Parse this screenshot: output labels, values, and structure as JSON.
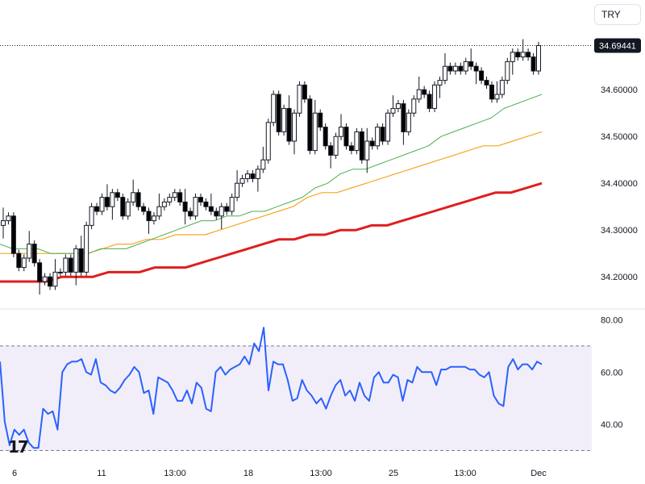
{
  "currency_selector": {
    "label": "TRY"
  },
  "chart_data": [
    {
      "type": "candlestick",
      "ylim": [
        34.14,
        34.74
      ],
      "y_ticks": [
        "34.20000",
        "34.30000",
        "34.40000",
        "34.50000",
        "34.60000"
      ],
      "last_price": {
        "label": "34.69441",
        "value": 34.69441
      },
      "x_ticks": [
        "6",
        "11",
        "13:00",
        "18",
        "13:00",
        "25",
        "13:00",
        "Dec"
      ],
      "candles_close": [
        34.32,
        34.33,
        34.25,
        34.22,
        34.24,
        34.27,
        34.23,
        34.19,
        34.2,
        34.18,
        34.21,
        34.21,
        34.24,
        34.21,
        34.26,
        34.21,
        34.31,
        34.35,
        34.34,
        34.37,
        34.35,
        34.38,
        34.37,
        34.33,
        34.36,
        34.38,
        34.35,
        34.34,
        34.32,
        34.33,
        34.35,
        34.36,
        34.37,
        34.38,
        34.36,
        34.34,
        34.33,
        34.37,
        34.36,
        34.35,
        34.34,
        34.33,
        34.35,
        34.34,
        34.37,
        34.4,
        34.41,
        34.42,
        34.41,
        34.43,
        34.45,
        34.53,
        34.59,
        34.51,
        34.56,
        34.49,
        34.55,
        34.61,
        34.58,
        34.47,
        34.55,
        34.52,
        34.48,
        34.46,
        34.5,
        34.52,
        34.48,
        34.47,
        34.51,
        34.45,
        34.49,
        34.48,
        34.52,
        34.49,
        34.55,
        34.56,
        34.57,
        34.51,
        34.55,
        34.58,
        34.6,
        34.59,
        34.56,
        34.61,
        34.62,
        34.65,
        34.64,
        34.65,
        34.64,
        34.66,
        34.65,
        34.64,
        34.62,
        34.61,
        34.58,
        34.59,
        34.62,
        34.66,
        34.68,
        34.67,
        34.68,
        34.67,
        34.64,
        34.69441
      ],
      "ema_20": [
        34.27,
        34.26,
        34.26,
        34.26,
        34.25,
        34.25,
        34.25,
        34.25,
        34.26,
        34.26,
        34.26,
        34.27,
        34.28,
        34.29,
        34.3,
        34.31,
        34.32,
        34.32,
        34.33,
        34.33,
        34.34,
        34.34,
        34.35,
        34.36,
        34.37,
        34.39,
        34.4,
        34.42,
        34.43,
        34.43,
        34.44,
        34.45,
        34.46,
        34.47,
        34.48,
        34.5,
        34.51,
        34.52,
        34.53,
        34.54,
        34.56,
        34.57,
        34.58,
        34.59
      ],
      "ema_50": [
        34.25,
        34.25,
        34.25,
        34.25,
        34.25,
        34.25,
        34.25,
        34.26,
        34.27,
        34.27,
        34.28,
        34.28,
        34.29,
        34.29,
        34.29,
        34.3,
        34.31,
        34.32,
        34.33,
        34.34,
        34.35,
        34.37,
        34.38,
        34.38,
        34.39,
        34.4,
        34.41,
        34.42,
        34.43,
        34.44,
        34.45,
        34.46,
        34.47,
        34.48,
        34.48,
        34.49,
        34.5,
        34.51
      ],
      "ema_100": [
        34.19,
        34.19,
        34.19,
        34.19,
        34.2,
        34.2,
        34.2,
        34.21,
        34.21,
        34.21,
        34.22,
        34.22,
        34.22,
        34.23,
        34.24,
        34.25,
        34.26,
        34.27,
        34.28,
        34.28,
        34.29,
        34.29,
        34.3,
        34.3,
        34.31,
        34.31,
        34.32,
        34.33,
        34.34,
        34.35,
        34.36,
        34.37,
        34.38,
        34.38,
        34.39,
        34.4
      ],
      "colors": {
        "ema_20": "#4caf50",
        "ema_50": "#f5a623",
        "ema_100": "#e01e1e",
        "candle_up": "#ffffff",
        "candle_down": "#000000",
        "candle_wick": "#131722"
      }
    },
    {
      "type": "line",
      "ylim": [
        28,
        82
      ],
      "y_ticks": [
        "40.00",
        "60.00",
        "80.00"
      ],
      "band": [
        30,
        70
      ],
      "color": "#2962ff",
      "values": [
        64,
        41,
        32,
        38,
        36,
        38,
        33,
        31,
        31,
        46,
        44,
        45,
        38,
        60,
        63,
        64,
        64,
        65,
        60,
        59,
        65,
        56,
        55,
        53,
        52,
        54,
        57,
        59,
        62,
        60,
        52,
        53,
        44,
        58,
        57,
        56,
        53,
        49,
        49,
        53,
        48,
        56,
        54,
        46,
        45,
        60,
        62,
        59,
        61,
        62,
        63,
        66,
        63,
        71,
        68,
        77,
        53,
        64,
        63,
        63,
        57,
        49,
        50,
        57,
        53,
        51,
        48,
        50,
        46,
        51,
        55,
        57,
        51,
        53,
        49,
        56,
        51,
        49,
        58,
        60,
        56,
        56,
        59,
        58,
        49,
        57,
        56,
        62,
        60,
        60,
        60,
        55,
        61,
        61,
        62,
        62,
        62,
        62,
        61,
        61,
        59,
        58,
        60,
        51,
        48,
        47,
        62,
        65,
        61,
        63,
        63,
        61,
        64,
        63
      ],
      "candles_open_hint": ""
    }
  ]
}
